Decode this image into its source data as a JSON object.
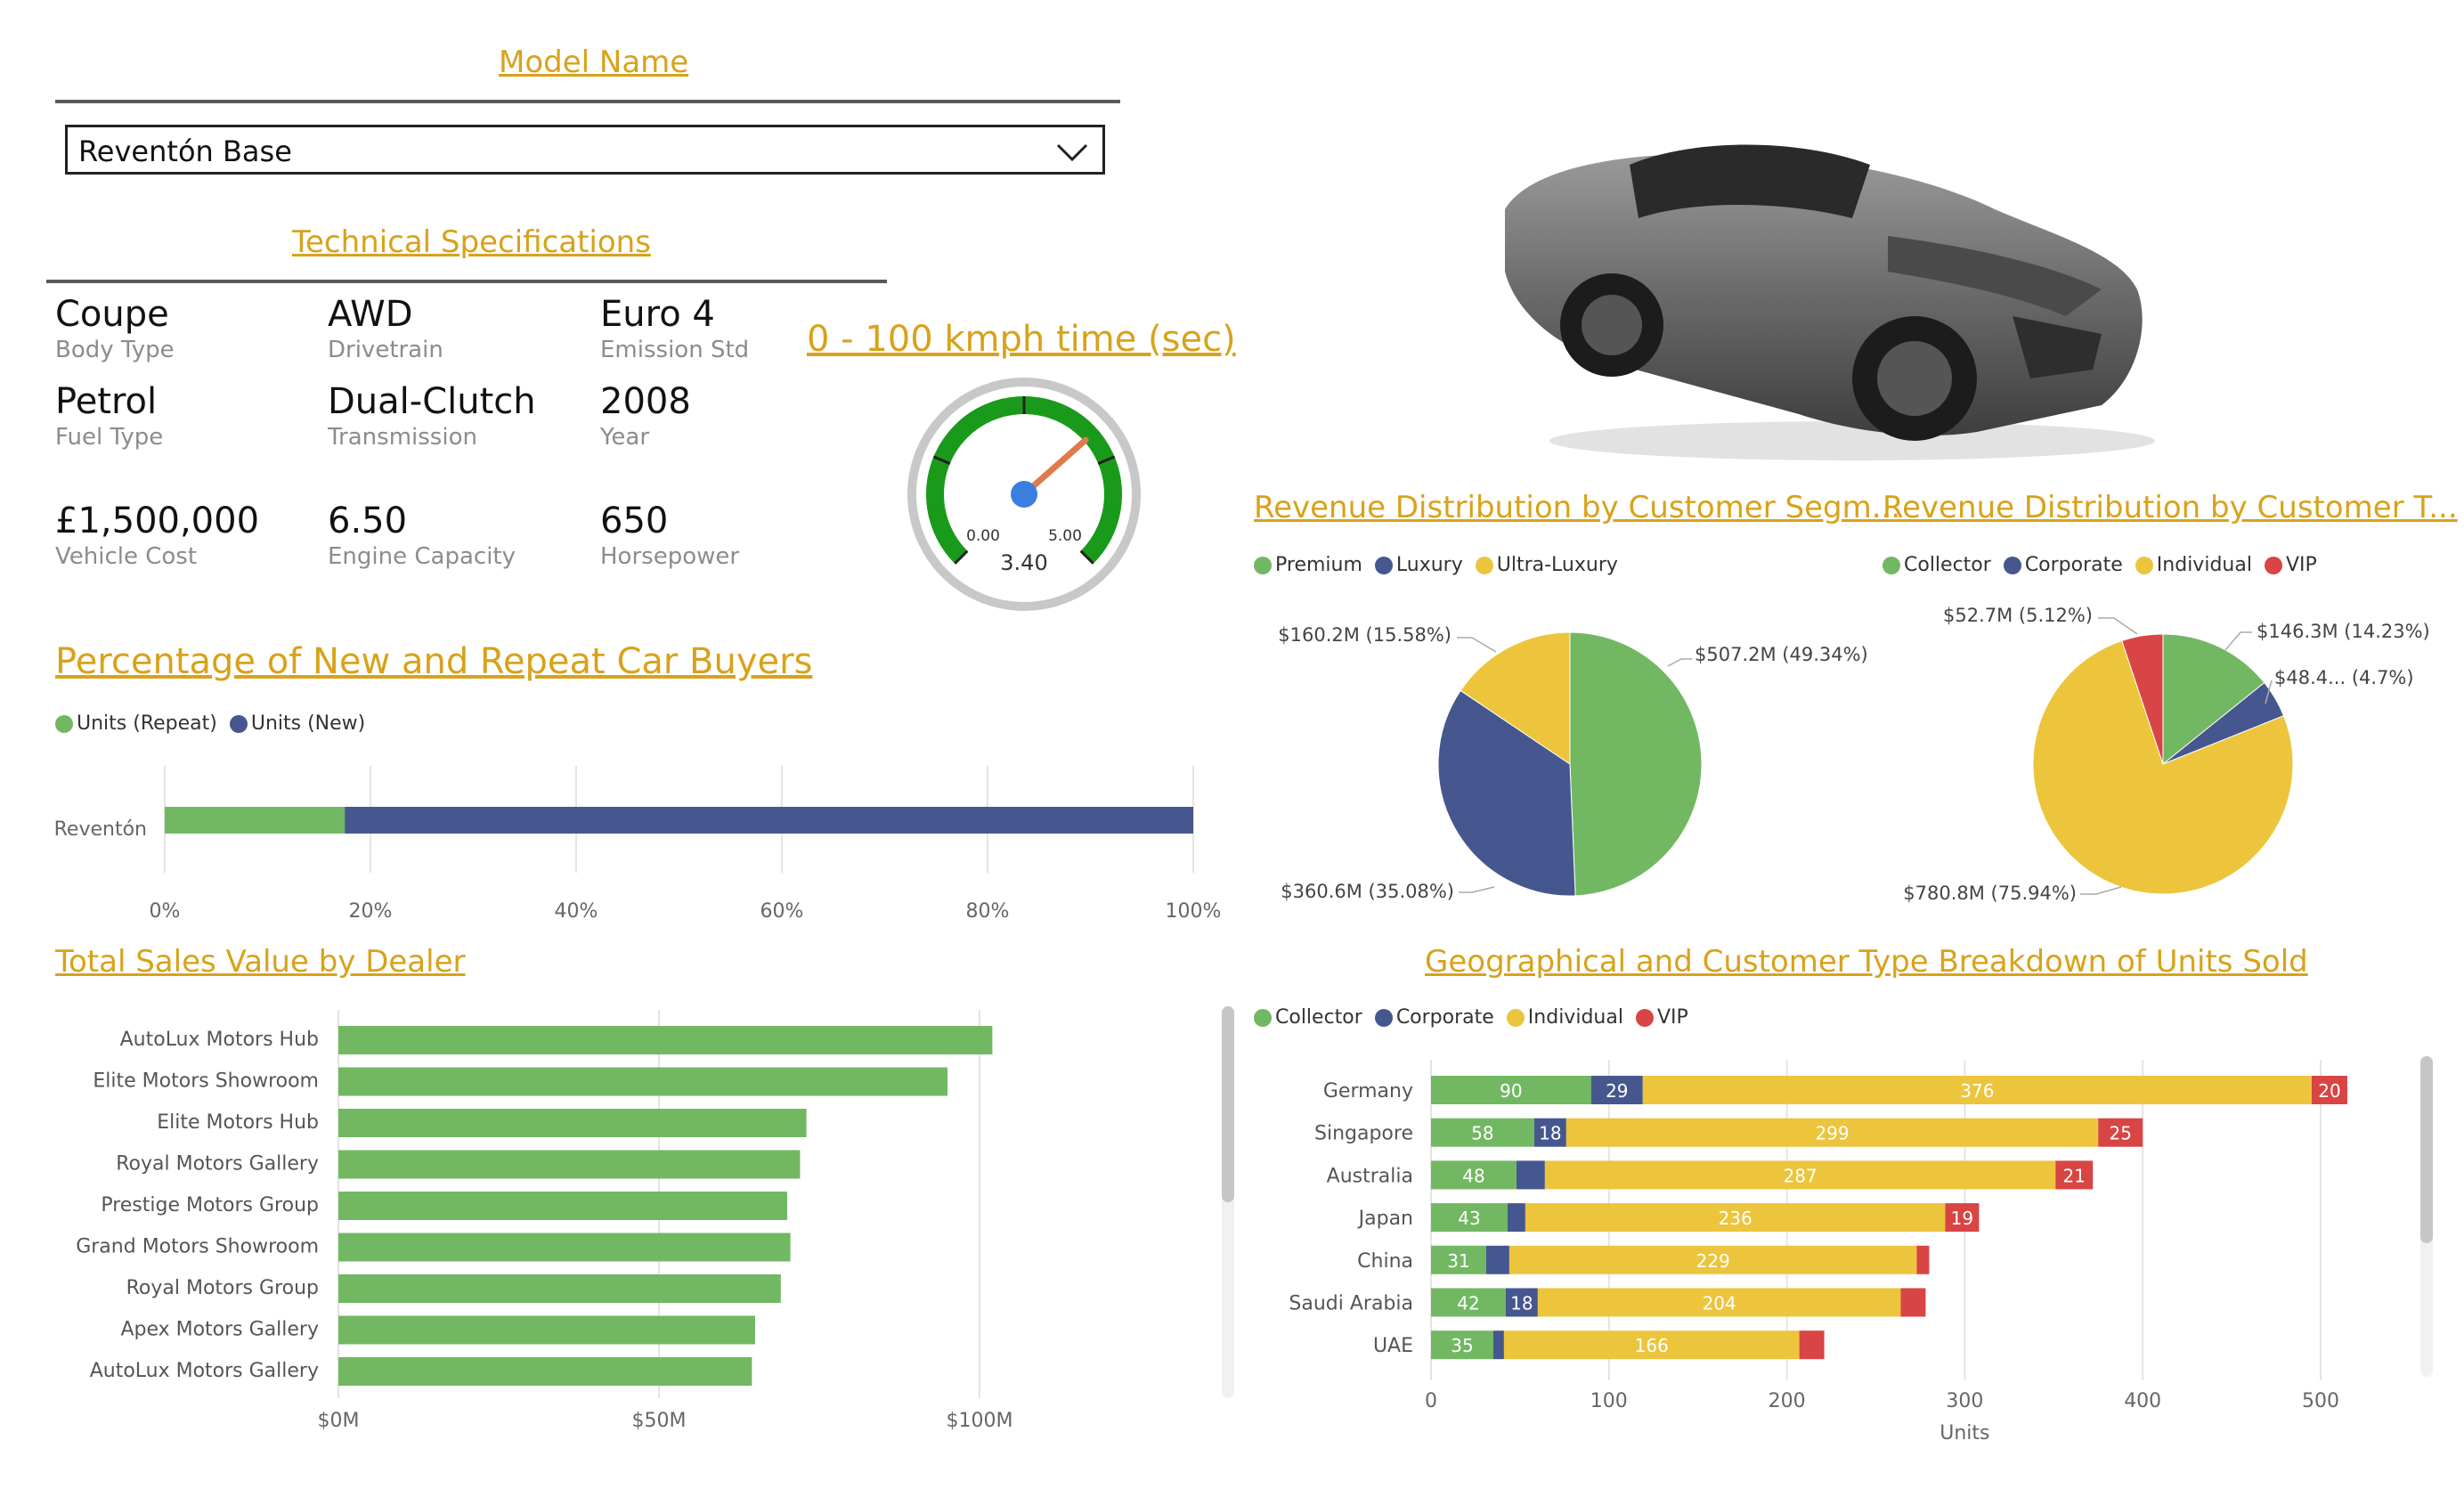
{
  "model_filter": {
    "title": "Model Name",
    "selected": "Reventón Base"
  },
  "specs": {
    "title": "Technical Specifications",
    "items": [
      {
        "value": "Coupe",
        "label": "Body Type"
      },
      {
        "value": "AWD",
        "label": "Drivetrain"
      },
      {
        "value": "Euro 4",
        "label": "Emission Std"
      },
      {
        "value": "Petrol",
        "label": "Fuel Type"
      },
      {
        "value": "Dual-Clutch",
        "label": "Transmission"
      },
      {
        "value": "2008",
        "label": "Year"
      },
      {
        "value": "£1,500,000",
        "label": "Vehicle Cost"
      },
      {
        "value": "6.50",
        "label": "Engine Capacity"
      },
      {
        "value": "650",
        "label": "Horsepower"
      }
    ]
  },
  "gauge": {
    "title": "0 - 100 kmph time (sec)",
    "min_label": "0.00",
    "max_label": "5.00",
    "value_label": "3.40",
    "min": 0,
    "max": 5,
    "value": 3.4,
    "color": "#1a9a1a"
  },
  "colors": {
    "green": "#72b862",
    "navy": "#46578f",
    "yellow": "#ecc53d",
    "red": "#d94444",
    "title": "#d8a21a"
  },
  "chart_data": [
    {
      "type": "bar",
      "id": "repeat-new",
      "title": "Percentage of New and Repeat Car Buyers",
      "orientation": "horizontal-stacked-100",
      "categories": [
        "Reventón"
      ],
      "series": [
        {
          "name": "Units (Repeat)",
          "values": [
            17.5
          ]
        },
        {
          "name": "Units (New)",
          "values": [
            82.5
          ]
        }
      ],
      "x_ticks": [
        "0%",
        "20%",
        "40%",
        "60%",
        "80%",
        "100%"
      ],
      "xlim": [
        0,
        100
      ]
    },
    {
      "type": "bar",
      "id": "dealer-sales",
      "title": "Total Sales Value by Dealer",
      "orientation": "horizontal",
      "categories": [
        "AutoLux Motors Hub",
        "Elite Motors Showroom",
        "Elite Motors Hub",
        "Royal Motors Gallery",
        "Prestige Motors Group",
        "Grand Motors Showroom",
        "Royal Motors Group",
        "Apex Motors Gallery",
        "AutoLux Motors Gallery"
      ],
      "values": [
        102,
        95,
        73,
        72,
        70,
        70.5,
        69,
        65,
        64.5
      ],
      "x_ticks": [
        "$0M",
        "$50M",
        "$100M"
      ],
      "xlim": [
        0,
        125
      ]
    },
    {
      "type": "pie",
      "id": "segment-pie",
      "title": "Revenue Distribution by Customer Segm...",
      "legend": [
        "Premium",
        "Luxury",
        "Ultra-Luxury"
      ],
      "slices": [
        {
          "name": "Premium",
          "value": 507.2,
          "label": "$507.2M (49.34%)"
        },
        {
          "name": "Luxury",
          "value": 360.6,
          "label": "$360.6M (35.08%)"
        },
        {
          "name": "Ultra-Luxury",
          "value": 160.2,
          "label": "$160.2M (15.58%)"
        }
      ]
    },
    {
      "type": "pie",
      "id": "type-pie",
      "title": "Revenue Distribution by Customer T...",
      "legend": [
        "Collector",
        "Corporate",
        "Individual",
        "VIP"
      ],
      "slices": [
        {
          "name": "Collector",
          "value": 146.3,
          "label": "$146.3M (14.23%)"
        },
        {
          "name": "Corporate",
          "value": 48.4,
          "label": "$48.4... (4.7%)"
        },
        {
          "name": "Individual",
          "value": 780.8,
          "label": "$780.8M (75.94%)"
        },
        {
          "name": "VIP",
          "value": 52.7,
          "label": "$52.7M (5.12%)"
        }
      ]
    },
    {
      "type": "bar",
      "id": "geo-units",
      "title": "Geographical and Customer Type Breakdown of Units Sold",
      "orientation": "horizontal-stacked",
      "xlabel": "Units",
      "categories": [
        "Germany",
        "Singapore",
        "Australia",
        "Japan",
        "China",
        "Saudi Arabia",
        "UAE"
      ],
      "series": [
        {
          "name": "Collector",
          "values": [
            90,
            58,
            48,
            43,
            31,
            42,
            35
          ],
          "labels": [
            "90",
            "58",
            "48",
            "43",
            "31",
            "42",
            "35"
          ]
        },
        {
          "name": "Corporate",
          "values": [
            29,
            18,
            16,
            10,
            13,
            18,
            6
          ],
          "labels": [
            "29",
            "18",
            "",
            "",
            "",
            "18",
            ""
          ]
        },
        {
          "name": "Individual",
          "values": [
            376,
            299,
            287,
            236,
            229,
            204,
            166
          ],
          "labels": [
            "376",
            "299",
            "287",
            "236",
            "229",
            "204",
            "166"
          ]
        },
        {
          "name": "VIP",
          "values": [
            20,
            25,
            21,
            19,
            7,
            14,
            14
          ],
          "labels": [
            "20",
            "25",
            "21",
            "19",
            "",
            "",
            ""
          ]
        }
      ],
      "x_ticks": [
        "0",
        "100",
        "200",
        "300",
        "400",
        "500"
      ],
      "xlim": [
        0,
        500
      ]
    }
  ]
}
